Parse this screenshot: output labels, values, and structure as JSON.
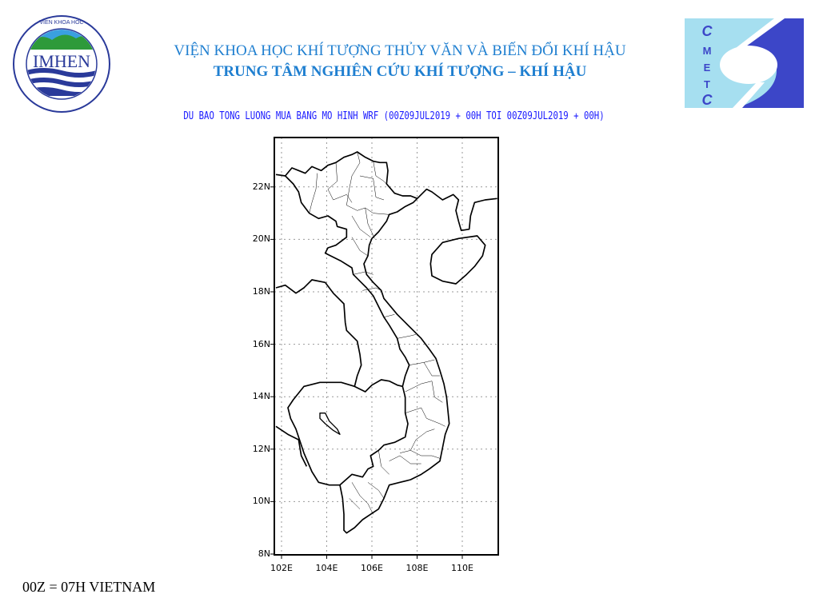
{
  "header": {
    "institute": "VIỆN KHOA HỌC KHÍ TƯỢNG THỦY VĂN VÀ BIẾN ĐỔI KHÍ HẬU",
    "center": "TRUNG TÂM NGHIÊN CỨU KHÍ TƯỢNG – KHÍ HẬU",
    "left_logo": {
      "text": "IMHEN",
      "ring_text": "VIỆN KHOA HỌC KHÍ TƯỢNG THỦY VĂN VÀ BIẾN ĐỔI KHÍ HẬU"
    },
    "right_logo": {
      "letters": [
        "C",
        "M",
        "E",
        "T",
        "C"
      ],
      "colors": {
        "light": "#a6dff0",
        "dark": "#3c46c8"
      }
    }
  },
  "map": {
    "title": "DU BAO TONG LUONG MUA BANG MO HINH WRF (00Z09JUL2019 + 00H TOI 00Z09JUL2019 + 00H)",
    "lat_ticks": [
      "22N",
      "20N",
      "18N",
      "16N",
      "14N",
      "12N",
      "10N",
      "8N"
    ],
    "lon_ticks": [
      "102E",
      "104E",
      "106E",
      "108E",
      "110E"
    ],
    "extent": {
      "lon": [
        101.7,
        111.6
      ],
      "lat": [
        8,
        23.9
      ]
    },
    "grid": "dotted",
    "title_color": "#1a1aff"
  },
  "footer": "00Z = 07H VIETNAM"
}
